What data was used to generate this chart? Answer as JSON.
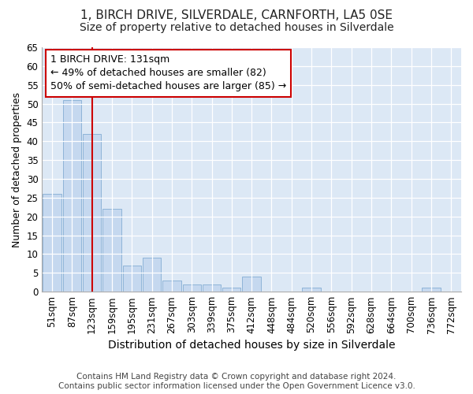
{
  "title": "1, BIRCH DRIVE, SILVERDALE, CARNFORTH, LA5 0SE",
  "subtitle": "Size of property relative to detached houses in Silverdale",
  "xlabel": "Distribution of detached houses by size in Silverdale",
  "ylabel": "Number of detached properties",
  "categories": [
    "51sqm",
    "87sqm",
    "123sqm",
    "159sqm",
    "195sqm",
    "231sqm",
    "267sqm",
    "303sqm",
    "339sqm",
    "375sqm",
    "412sqm",
    "448sqm",
    "484sqm",
    "520sqm",
    "556sqm",
    "592sqm",
    "628sqm",
    "664sqm",
    "700sqm",
    "736sqm",
    "772sqm"
  ],
  "values": [
    26,
    51,
    42,
    22,
    7,
    9,
    3,
    2,
    2,
    1,
    4,
    0,
    0,
    1,
    0,
    0,
    0,
    0,
    0,
    1,
    0
  ],
  "bar_color": "#c5d8ef",
  "bar_edge_color": "#8eb4d8",
  "vline_x_index": 2,
  "vline_color": "#cc0000",
  "annotation_text": "1 BIRCH DRIVE: 131sqm\n← 49% of detached houses are smaller (82)\n50% of semi-detached houses are larger (85) →",
  "annotation_box_color": "#ffffff",
  "annotation_box_edge_color": "#cc0000",
  "ylim": [
    0,
    65
  ],
  "yticks": [
    0,
    5,
    10,
    15,
    20,
    25,
    30,
    35,
    40,
    45,
    50,
    55,
    60,
    65
  ],
  "background_color": "#dce8f5",
  "figure_bg_color": "#ffffff",
  "footer_text": "Contains HM Land Registry data © Crown copyright and database right 2024.\nContains public sector information licensed under the Open Government Licence v3.0.",
  "title_fontsize": 11,
  "subtitle_fontsize": 10,
  "xlabel_fontsize": 10,
  "ylabel_fontsize": 9,
  "tick_fontsize": 8.5,
  "annotation_fontsize": 9,
  "footer_fontsize": 7.5
}
